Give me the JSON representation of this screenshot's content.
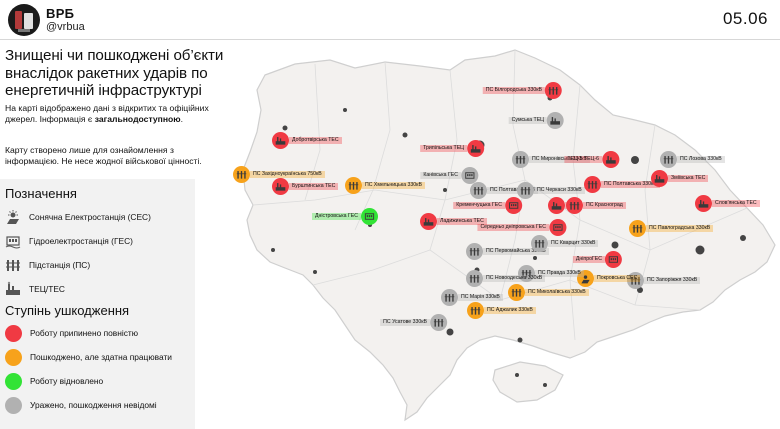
{
  "header": {
    "brand_name": "ВРБ",
    "brand_handle": "@vrbua",
    "date": "05.06"
  },
  "intro": {
    "title": "Знищені чи пошкоджені об’єкти внаслідок ракетних ударів по енергетичній інфраструктурі",
    "paragraph1_a": "На карті відображено дані з відкритих та офіційних джерел. Інформація є ",
    "paragraph1_b": "загальнодоступною",
    "paragraph1_c": ".",
    "paragraph2": "Карту створено лише для ознайомлення з інформацією. Не несе жодної військової цінності."
  },
  "legend": {
    "types_title": "Позначення",
    "types": [
      {
        "icon": "solar-icon",
        "label": "Сонячна Електростанція (СЕС)"
      },
      {
        "icon": "hydro-icon",
        "label": "Гідроелектростанція (ГЕС)"
      },
      {
        "icon": "substation-icon",
        "label": "Підстанція (ПС)"
      },
      {
        "icon": "thermal-icon",
        "label": "ТЕЦ/ТЕС"
      }
    ],
    "damage_title": "Ступінь ушкодження",
    "damage": [
      {
        "color": "#f03a43",
        "label": "Роботу припинено повністю"
      },
      {
        "color": "#f7a21b",
        "label": "Пошкоджено, але здатна працювати"
      },
      {
        "color": "#32e336",
        "label": "Роботу відновлено"
      },
      {
        "color": "#b1b1b1",
        "label": "Уражено, пошкодження невідомі"
      }
    ]
  },
  "colors": {
    "red": "#f03a43",
    "orange": "#f7a21b",
    "green": "#32e336",
    "grey": "#b1b1b1",
    "map_fill": "#f3f1ef",
    "map_border": "#cfcfcf"
  },
  "markers": [
    {
      "id": "dobrotvir",
      "label": "Добротвірська ТЕС",
      "status": "red",
      "type": "thermal"
    },
    {
      "id": "burshtyn",
      "label": "Бурштинська ТЕС",
      "status": "red",
      "type": "thermal"
    },
    {
      "id": "zahidnoukr",
      "label": "ПС Західноукраїнська 750кВ",
      "status": "orange",
      "type": "substation"
    },
    {
      "id": "khmelnytska",
      "label": "ПС Хмельницька 330кВ",
      "status": "orange",
      "type": "substation"
    },
    {
      "id": "dnistrovska",
      "label": "Дністровська ГЕС",
      "status": "green",
      "type": "hydro"
    },
    {
      "id": "ladyzhyn",
      "label": "Ладижинська ТЕС",
      "status": "red",
      "type": "thermal"
    },
    {
      "id": "trypilska",
      "label": "Трипільська ТЕЦ",
      "status": "red",
      "type": "thermal"
    },
    {
      "id": "kanivska",
      "label": "Канівська ГЕС",
      "status": "grey",
      "type": "hydro"
    },
    {
      "id": "myronivska",
      "label": "ПС Миронівська 330кВ",
      "status": "grey",
      "type": "substation"
    },
    {
      "id": "poltava_ps",
      "label": "ПС Полтава 330кВ",
      "status": "grey",
      "type": "substation"
    },
    {
      "id": "cherkasy_ps",
      "label": "ПС Черкаси 330кВ",
      "status": "grey",
      "type": "substation"
    },
    {
      "id": "kremenchuk",
      "label": "Кременчуцька ГЕС",
      "status": "red",
      "type": "hydro"
    },
    {
      "id": "kremenchuk_tec",
      "label": "ТЕЦ",
      "status": "red",
      "type": "thermal"
    },
    {
      "id": "krasnohrad",
      "label": "ПС Красноград",
      "status": "red",
      "type": "substation"
    },
    {
      "id": "poltavska_tec",
      "label": "ПС Полтавська 330кВ",
      "status": "red",
      "type": "substation"
    },
    {
      "id": "bilhorod",
      "label": "ПС Білгородська 330кВ",
      "status": "red",
      "type": "substation"
    },
    {
      "id": "sumska",
      "label": "Сумська ТЕЦ",
      "status": "grey",
      "type": "thermal"
    },
    {
      "id": "kharkiv_tec",
      "label": "ТЕЦ-5 ТЕЦ-6",
      "status": "red",
      "type": "thermal"
    },
    {
      "id": "lozova",
      "label": "ПС Лозова 330кВ",
      "status": "grey",
      "type": "substation"
    },
    {
      "id": "zmiiv",
      "label": "Зміївська ТЕС",
      "status": "red",
      "type": "thermal"
    },
    {
      "id": "vuhlehirsk",
      "label": "Слов’янська ТЕС",
      "status": "red",
      "type": "thermal"
    },
    {
      "id": "pavlohrad",
      "label": "ПС Павлоградська 330кВ",
      "status": "orange",
      "type": "substation"
    },
    {
      "id": "seredn_dnipro",
      "label": "Середньо дніпровська ГЕС",
      "status": "red",
      "type": "hydro"
    },
    {
      "id": "pervomaisk",
      "label": "ПС Первомайська 330кВ",
      "status": "grey",
      "type": "substation"
    },
    {
      "id": "kryvyi_rih",
      "label": "ПС Кварцит 330кВ",
      "status": "grey",
      "type": "substation"
    },
    {
      "id": "dniproges",
      "label": "ДніпроГЕС",
      "status": "red",
      "type": "hydro"
    },
    {
      "id": "zaporizhzhia_ps",
      "label": "ПС Запоріжжя 330кВ",
      "status": "grey",
      "type": "substation"
    },
    {
      "id": "pokrovska",
      "label": "Покровська СЕС",
      "status": "orange",
      "type": "solar"
    },
    {
      "id": "mykolaiv_ps",
      "label": "ПС Миколаївська 330кВ",
      "status": "orange",
      "type": "substation"
    },
    {
      "id": "pravda",
      "label": "ПС Правда 330кВ",
      "status": "grey",
      "type": "substation"
    },
    {
      "id": "adzhalyk",
      "label": "ПС Аджалик 330кВ",
      "status": "orange",
      "type": "substation"
    },
    {
      "id": "usatove",
      "label": "ПС Усатове 330кВ",
      "status": "grey",
      "type": "substation"
    },
    {
      "id": "mariia",
      "label": "ПС Марія 330кВ",
      "status": "grey",
      "type": "substation"
    },
    {
      "id": "novoodeska",
      "label": "ПС Новоодеська 330кВ",
      "status": "grey",
      "type": "substation"
    }
  ]
}
